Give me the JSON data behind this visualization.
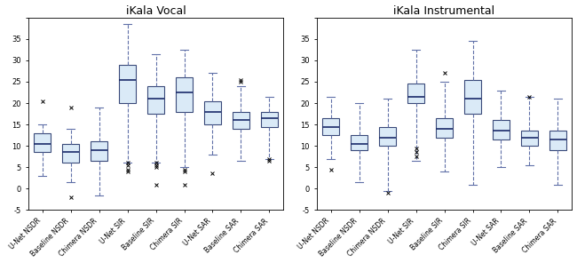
{
  "vocal_title": "iKala Vocal",
  "instrumental_title": "iKala Instrumental",
  "labels": [
    "U-Net NSDR",
    "Baseline NSDR",
    "Chimera NSDR",
    "U-Net SIR",
    "Baseline SIR",
    "Chimera SIR",
    "U-Net SAR",
    "Baseline SAR",
    "Chimera SAR"
  ],
  "ylim": [
    -5,
    40
  ],
  "box_color": "#daeaf7",
  "box_edge_color": "#3a4a7a",
  "median_color": "#1a2a6a",
  "whisker_color": "#6070a8",
  "flier_color": "#6070a8",
  "vocal_data": [
    {
      "med": 10.5,
      "q1": 8.5,
      "q3": 13.0,
      "whislo": 3.0,
      "whishi": 15.0,
      "fliers": [
        20.5
      ]
    },
    {
      "med": 8.5,
      "q1": 6.0,
      "q3": 10.5,
      "whislo": 1.5,
      "whishi": 14.0,
      "fliers": [
        19.0,
        -2.0
      ]
    },
    {
      "med": 9.0,
      "q1": 6.5,
      "q3": 11.0,
      "whislo": -1.5,
      "whishi": 19.0,
      "fliers": []
    },
    {
      "med": 25.5,
      "q1": 20.0,
      "q3": 29.0,
      "whislo": 6.0,
      "whishi": 38.5,
      "fliers": [
        6.0,
        5.5,
        4.5,
        4.0
      ]
    },
    {
      "med": 21.0,
      "q1": 17.5,
      "q3": 24.0,
      "whislo": 6.0,
      "whishi": 31.5,
      "fliers": [
        6.0,
        5.5,
        5.0,
        1.0
      ]
    },
    {
      "med": 22.5,
      "q1": 18.0,
      "q3": 26.0,
      "whislo": 5.0,
      "whishi": 32.5,
      "fliers": [
        4.5,
        4.0,
        1.0
      ]
    },
    {
      "med": 18.0,
      "q1": 15.0,
      "q3": 20.5,
      "whislo": 8.0,
      "whishi": 27.0,
      "fliers": [
        3.5
      ]
    },
    {
      "med": 16.0,
      "q1": 14.0,
      "q3": 18.0,
      "whislo": 6.5,
      "whishi": 24.0,
      "fliers": [
        25.5,
        25.0
      ]
    },
    {
      "med": 16.5,
      "q1": 14.5,
      "q3": 18.0,
      "whislo": 7.0,
      "whishi": 21.5,
      "fliers": [
        7.0,
        6.5
      ]
    }
  ],
  "instrumental_data": [
    {
      "med": 14.5,
      "q1": 12.5,
      "q3": 16.5,
      "whislo": 7.0,
      "whishi": 21.5,
      "fliers": [
        4.5
      ]
    },
    {
      "med": 10.5,
      "q1": 9.0,
      "q3": 12.5,
      "whislo": 1.5,
      "whishi": 20.0,
      "fliers": []
    },
    {
      "med": 12.0,
      "q1": 10.0,
      "q3": 14.5,
      "whislo": -0.5,
      "whishi": 21.0,
      "fliers": [
        -1.0
      ]
    },
    {
      "med": 21.5,
      "q1": 20.0,
      "q3": 24.5,
      "whislo": 6.5,
      "whishi": 32.5,
      "fliers": [
        9.5,
        8.5,
        7.5
      ]
    },
    {
      "med": 14.0,
      "q1": 12.0,
      "q3": 16.5,
      "whislo": 4.0,
      "whishi": 25.0,
      "fliers": [
        27.0
      ]
    },
    {
      "med": 21.0,
      "q1": 17.5,
      "q3": 25.5,
      "whislo": 1.0,
      "whishi": 34.5,
      "fliers": []
    },
    {
      "med": 13.5,
      "q1": 11.5,
      "q3": 16.0,
      "whislo": 5.0,
      "whishi": 23.0,
      "fliers": []
    },
    {
      "med": 12.0,
      "q1": 10.0,
      "q3": 13.5,
      "whislo": 5.5,
      "whishi": 21.5,
      "fliers": [
        21.5
      ]
    },
    {
      "med": 11.5,
      "q1": 9.0,
      "q3": 13.5,
      "whislo": 1.0,
      "whishi": 21.0,
      "fliers": []
    }
  ]
}
